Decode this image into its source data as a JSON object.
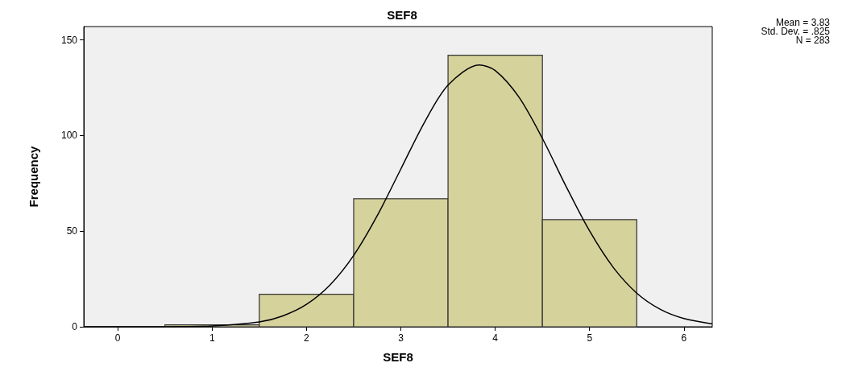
{
  "chart_data": {
    "type": "histogram",
    "title": "SEF8",
    "xlabel": "SEF8",
    "ylabel": "Frequency",
    "bins": [
      0.5,
      1.5,
      2.5,
      3.5,
      4.5,
      5.5
    ],
    "values": [
      1,
      17,
      67,
      142,
      56
    ],
    "color": "#d6d29c",
    "series": [
      {
        "type": "line",
        "color": "#000000",
        "x": [
          -0.36,
          0,
          0.5,
          1,
          1.5,
          1.75,
          2,
          2.25,
          2.5,
          2.75,
          3,
          3.25,
          3.5,
          3.83,
          4,
          4.25,
          4.5,
          4.75,
          5,
          5.25,
          5.5,
          5.75,
          6,
          6.3
        ],
        "values": [
          0,
          0,
          0,
          0.4,
          2.5,
          5.7,
          11.7,
          21.9,
          37.3,
          58.1,
          82.5,
          106.9,
          126.4,
          136.9,
          134,
          120.2,
          98.5,
          73.5,
          50.1,
          31.1,
          17.6,
          9.1,
          4.3,
          1.5
        ]
      }
    ],
    "marker": "none",
    "line_style": "solid",
    "xlim": [
      -0.36,
      6.3
    ],
    "xticks": [
      0,
      1,
      2,
      3,
      4,
      5,
      6
    ],
    "ylim": [
      0,
      157
    ],
    "yticks": [
      0,
      50,
      100,
      150
    ],
    "grid": false,
    "annotations": [
      "Mean = 3.83",
      "Std. Dev. = .825",
      "N = 283"
    ]
  }
}
